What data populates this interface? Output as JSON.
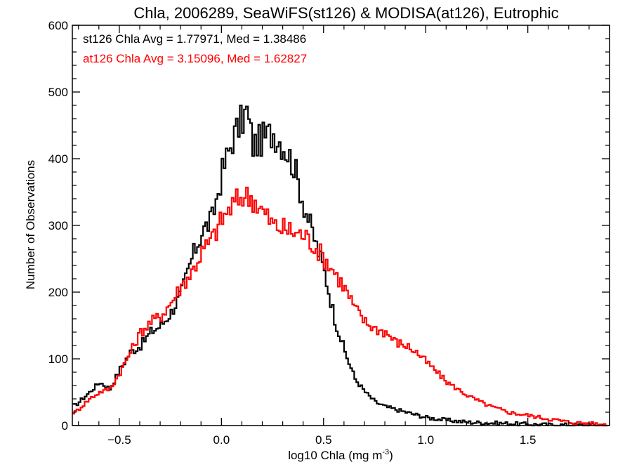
{
  "chart_data": {
    "type": "line",
    "title": "Chla, 2006289, SeaWiFS(st126) & MODISA(at126), Eutrophic",
    "xlabel_main": "log10 Chla (mg m",
    "xlabel_sup": "-3",
    "xlabel_close": ")",
    "ylabel": "Number of Observations",
    "xlim": [
      -0.73,
      1.9
    ],
    "ylim": [
      0,
      600
    ],
    "xticks": [
      -0.5,
      0.0,
      0.5,
      1.0,
      1.5
    ],
    "xtick_labels": [
      "−0.5",
      "0.0",
      "0.5",
      "1.0",
      "1.5"
    ],
    "yticks": [
      0,
      100,
      200,
      300,
      400,
      500,
      600
    ],
    "ytick_labels": [
      "0",
      "100",
      "200",
      "300",
      "400",
      "500",
      "600"
    ],
    "annotations": [
      {
        "text": "st126 Chla Avg = 1.77971, Med = 1.38486",
        "color": "#000000"
      },
      {
        "text": "at126 Chla Avg = 3.15096, Med = 1.62827",
        "color": "#ff0000"
      }
    ],
    "series": [
      {
        "color": "#000000",
        "x": [
          -0.72,
          -0.65,
          -0.6,
          -0.55,
          -0.5,
          -0.45,
          -0.4,
          -0.35,
          -0.3,
          -0.25,
          -0.2,
          -0.15,
          -0.1,
          -0.05,
          0.0,
          0.05,
          0.1,
          0.12,
          0.15,
          0.2,
          0.25,
          0.3,
          0.35,
          0.4,
          0.45,
          0.5,
          0.55,
          0.6,
          0.65,
          0.7,
          0.75,
          0.8,
          0.9,
          1.0,
          1.1,
          1.2,
          1.4,
          1.6,
          1.88
        ],
        "y": [
          30,
          50,
          65,
          55,
          85,
          110,
          120,
          140,
          150,
          170,
          200,
          250,
          290,
          310,
          380,
          430,
          460,
          470,
          420,
          430,
          440,
          420,
          390,
          330,
          280,
          230,
          160,
          110,
          70,
          50,
          35,
          28,
          20,
          12,
          8,
          5,
          3,
          1,
          1
        ]
      },
      {
        "color": "#ff0000",
        "x": [
          -0.72,
          -0.65,
          -0.6,
          -0.55,
          -0.5,
          -0.45,
          -0.4,
          -0.35,
          -0.3,
          -0.25,
          -0.2,
          -0.15,
          -0.1,
          -0.05,
          0.0,
          0.05,
          0.1,
          0.15,
          0.2,
          0.25,
          0.3,
          0.35,
          0.4,
          0.45,
          0.5,
          0.55,
          0.6,
          0.65,
          0.7,
          0.75,
          0.8,
          0.85,
          0.9,
          0.95,
          1.0,
          1.05,
          1.1,
          1.15,
          1.2,
          1.3,
          1.4,
          1.5,
          1.6,
          1.7,
          1.8,
          1.88
        ],
        "y": [
          20,
          40,
          50,
          55,
          80,
          110,
          140,
          155,
          165,
          185,
          210,
          230,
          260,
          280,
          310,
          330,
          345,
          340,
          320,
          300,
          295,
          290,
          285,
          270,
          250,
          230,
          205,
          175,
          155,
          145,
          140,
          125,
          120,
          110,
          95,
          80,
          65,
          55,
          45,
          30,
          20,
          15,
          10,
          5,
          3,
          1
        ]
      }
    ]
  }
}
